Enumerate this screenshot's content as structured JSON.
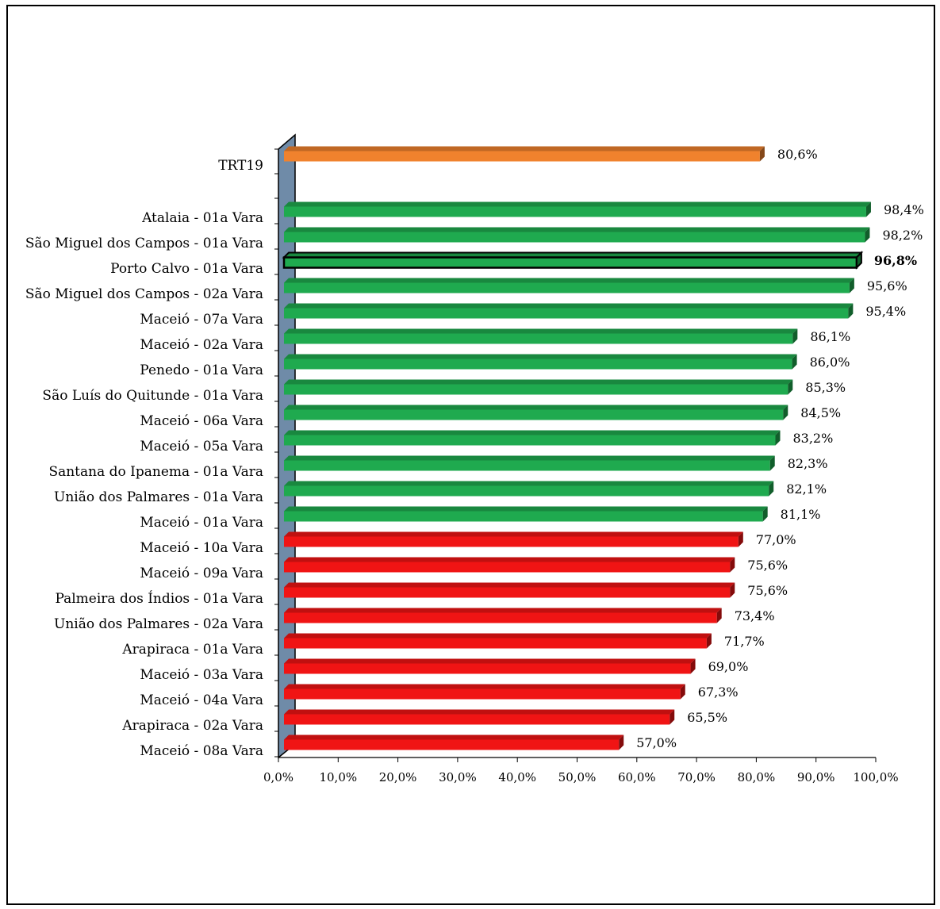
{
  "chart_data": {
    "type": "bar",
    "orientation": "horizontal",
    "xlim": [
      0,
      100
    ],
    "xticks": [
      "0,0%",
      "10,0%",
      "20,0%",
      "30,0%",
      "40,0%",
      "50,0%",
      "60,0%",
      "70,0%",
      "80,0%",
      "90,0%",
      "100,0%"
    ],
    "grid": false,
    "colors": {
      "reference": "#F0822D",
      "above": "#1FAA4F",
      "below": "#F01414",
      "highlight_fill": "#1FAA4F",
      "highlight_outline": "#000000",
      "wall": "#6F8BA8"
    },
    "bars": [
      {
        "label": "TRT19",
        "value": 80.6,
        "value_label": "80,6%",
        "group": "reference"
      },
      {
        "label": "Atalaia  - 01a Vara",
        "value": 98.4,
        "value_label": "98,4%",
        "group": "above"
      },
      {
        "label": "São Miguel dos Campos  - 01a Vara",
        "value": 98.2,
        "value_label": "98,2%",
        "group": "above"
      },
      {
        "label": "Porto Calvo  - 01a Vara",
        "value": 96.8,
        "value_label": "96,8%",
        "group": "highlight"
      },
      {
        "label": "São Miguel dos Campos  - 02a Vara",
        "value": 95.6,
        "value_label": "95,6%",
        "group": "above"
      },
      {
        "label": "Maceió  - 07a Vara",
        "value": 95.4,
        "value_label": "95,4%",
        "group": "above"
      },
      {
        "label": "Maceió  - 02a Vara",
        "value": 86.1,
        "value_label": "86,1%",
        "group": "above"
      },
      {
        "label": "Penedo  - 01a Vara",
        "value": 86.0,
        "value_label": "86,0%",
        "group": "above"
      },
      {
        "label": "São Luís do Quitunde  - 01a Vara",
        "value": 85.3,
        "value_label": "85,3%",
        "group": "above"
      },
      {
        "label": "Maceió  - 06a Vara",
        "value": 84.5,
        "value_label": "84,5%",
        "group": "above"
      },
      {
        "label": "Maceió  - 05a Vara",
        "value": 83.2,
        "value_label": "83,2%",
        "group": "above"
      },
      {
        "label": "Santana do Ipanema  - 01a Vara",
        "value": 82.3,
        "value_label": "82,3%",
        "group": "above"
      },
      {
        "label": "União dos Palmares  - 01a Vara",
        "value": 82.1,
        "value_label": "82,1%",
        "group": "above"
      },
      {
        "label": "Maceió  - 01a Vara",
        "value": 81.1,
        "value_label": "81,1%",
        "group": "above"
      },
      {
        "label": "Maceió  - 10a Vara",
        "value": 77.0,
        "value_label": "77,0%",
        "group": "below"
      },
      {
        "label": "Maceió  - 09a Vara",
        "value": 75.6,
        "value_label": "75,6%",
        "group": "below"
      },
      {
        "label": "Palmeira dos Índios  - 01a Vara",
        "value": 75.6,
        "value_label": "75,6%",
        "group": "below"
      },
      {
        "label": "União dos Palmares  - 02a Vara",
        "value": 73.4,
        "value_label": "73,4%",
        "group": "below"
      },
      {
        "label": "Arapiraca  - 01a Vara",
        "value": 71.7,
        "value_label": "71,7%",
        "group": "below"
      },
      {
        "label": "Maceió  - 03a Vara",
        "value": 69.0,
        "value_label": "69,0%",
        "group": "below"
      },
      {
        "label": "Maceió  - 04a Vara",
        "value": 67.3,
        "value_label": "67,3%",
        "group": "below"
      },
      {
        "label": "Arapiraca  - 02a Vara",
        "value": 65.5,
        "value_label": "65,5%",
        "group": "below"
      },
      {
        "label": "Maceió  - 08a Vara",
        "value": 57.0,
        "value_label": "57,0%",
        "group": "below"
      }
    ]
  }
}
